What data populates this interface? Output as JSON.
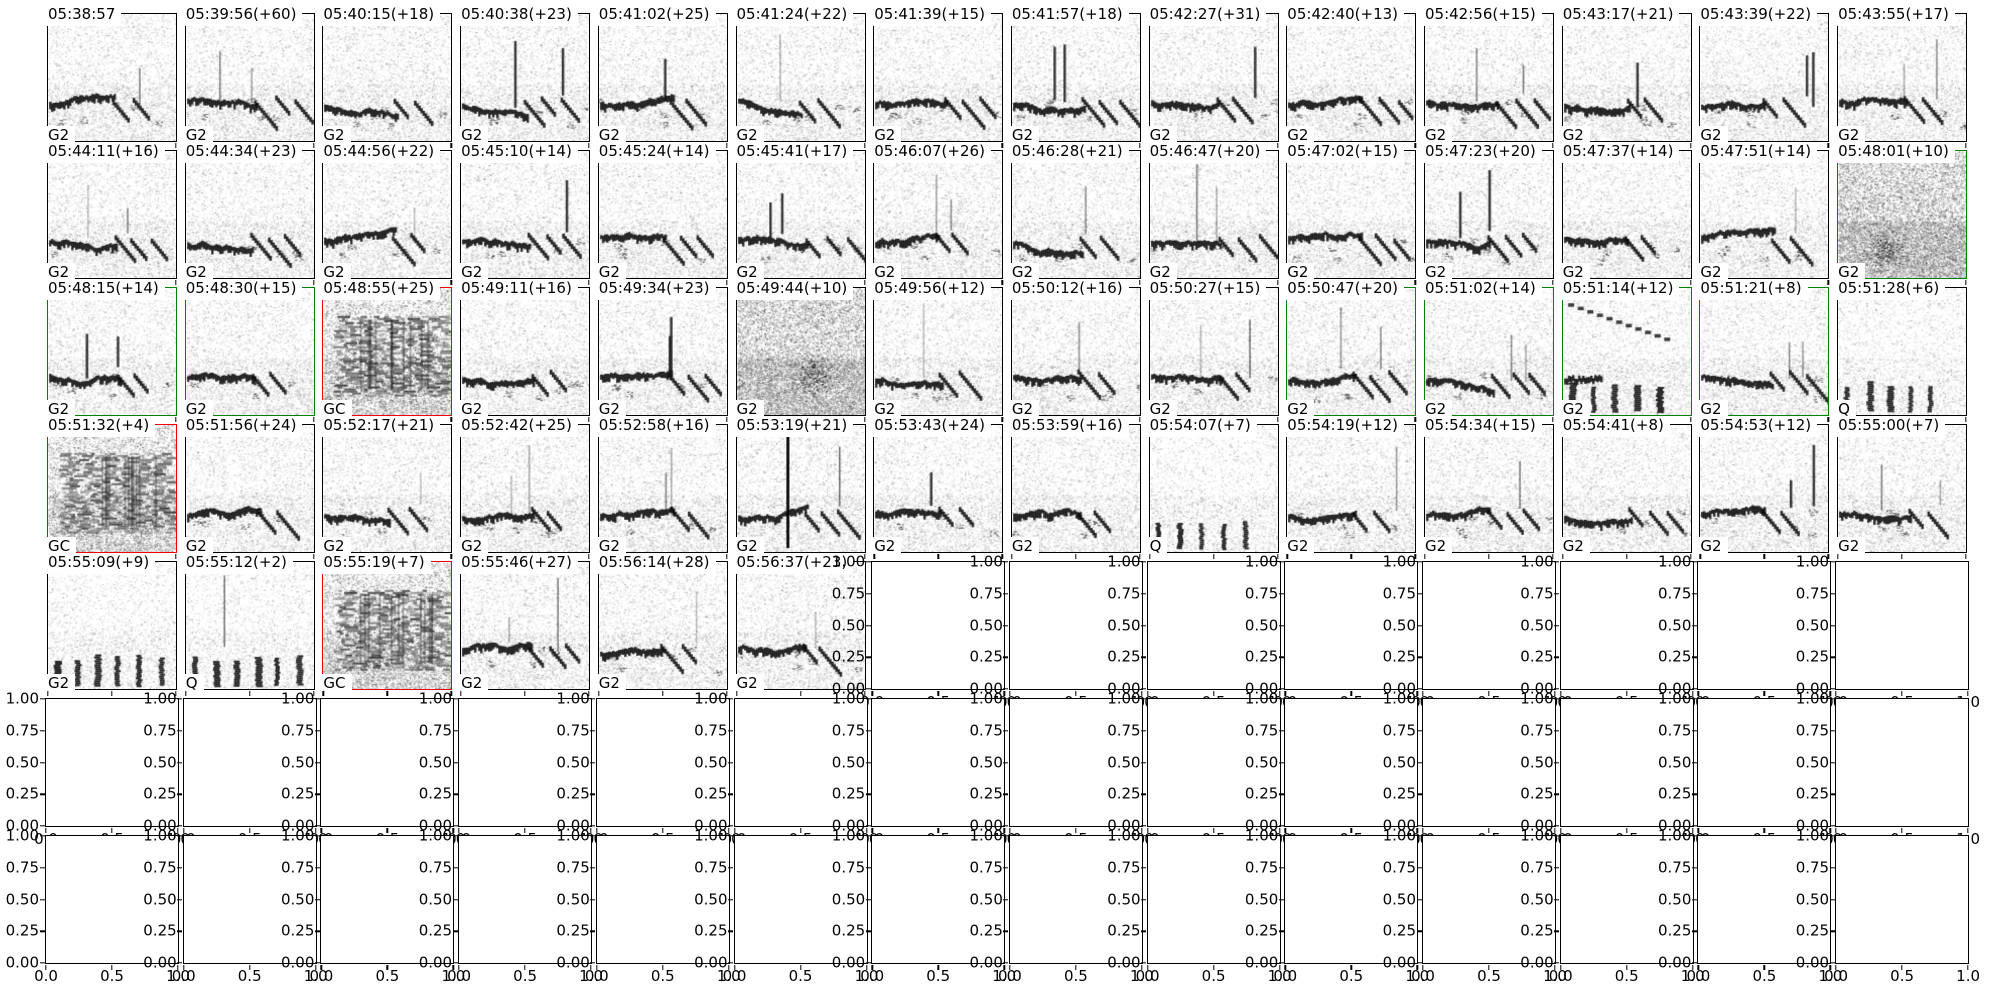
{
  "figure": {
    "rows": 7,
    "cols": 14,
    "background": "#ffffff",
    "border_colors": {
      "black": "#000000",
      "green": "#008000",
      "red": "#ee0000"
    },
    "y_tick_labels": [
      "1.00",
      "0.75",
      "0.50",
      "0.25",
      "0.00"
    ],
    "x_tick_labels": [
      "0.0",
      "0.5",
      "1.0"
    ]
  },
  "chart_data": {
    "type": "heatmap",
    "subtype": "spectrogram-thumbnail-grid",
    "rows": 7,
    "cols": 14,
    "spectrogram_count": 62,
    "empty_axes_count": 36,
    "empty_axes": {
      "x_range": [
        0,
        1
      ],
      "y_range": [
        0,
        1
      ],
      "y_ticks": [
        "1.00",
        "0.75",
        "0.50",
        "0.25",
        "0.00"
      ],
      "x_ticks": [
        "0.0",
        "0.5",
        "1.0"
      ]
    },
    "note": "Each spectrogram panel metadata (timestamp title, class label, border color) is listed in cells[]"
  },
  "cells": [
    {
      "type": "spec",
      "title": "05:38:57",
      "label": "G2",
      "border": "black",
      "texture": "normal"
    },
    {
      "type": "spec",
      "title": "05:39:56(+60)",
      "label": "G2",
      "border": "black",
      "texture": "normal"
    },
    {
      "type": "spec",
      "title": "05:40:15(+18)",
      "label": "G2",
      "border": "black",
      "texture": "normal"
    },
    {
      "type": "spec",
      "title": "05:40:38(+23)",
      "label": "G2",
      "border": "black",
      "texture": "normal"
    },
    {
      "type": "spec",
      "title": "05:41:02(+25)",
      "label": "G2",
      "border": "black",
      "texture": "normal"
    },
    {
      "type": "spec",
      "title": "05:41:24(+22)",
      "label": "G2",
      "border": "black",
      "texture": "normal"
    },
    {
      "type": "spec",
      "title": "05:41:39(+15)",
      "label": "G2",
      "border": "black",
      "texture": "normal"
    },
    {
      "type": "spec",
      "title": "05:41:57(+18)",
      "label": "G2",
      "border": "black",
      "texture": "normal"
    },
    {
      "type": "spec",
      "title": "05:42:27(+31)",
      "label": "G2",
      "border": "black",
      "texture": "normal"
    },
    {
      "type": "spec",
      "title": "05:42:40(+13)",
      "label": "G2",
      "border": "black",
      "texture": "normal"
    },
    {
      "type": "spec",
      "title": "05:42:56(+15)",
      "label": "G2",
      "border": "black",
      "texture": "normal"
    },
    {
      "type": "spec",
      "title": "05:43:17(+21)",
      "label": "G2",
      "border": "black",
      "texture": "normal"
    },
    {
      "type": "spec",
      "title": "05:43:39(+22)",
      "label": "G2",
      "border": "black",
      "texture": "normal"
    },
    {
      "type": "spec",
      "title": "05:43:55(+17)",
      "label": "G2",
      "border": "black",
      "texture": "normal"
    },
    {
      "type": "spec",
      "title": "05:44:11(+16)",
      "label": "G2",
      "border": "black",
      "texture": "normal"
    },
    {
      "type": "spec",
      "title": "05:44:34(+23)",
      "label": "G2",
      "border": "black",
      "texture": "normal"
    },
    {
      "type": "spec",
      "title": "05:44:56(+22)",
      "label": "G2",
      "border": "black",
      "texture": "normal"
    },
    {
      "type": "spec",
      "title": "05:45:10(+14)",
      "label": "G2",
      "border": "black",
      "texture": "normal"
    },
    {
      "type": "spec",
      "title": "05:45:24(+14)",
      "label": "G2",
      "border": "black",
      "texture": "normal"
    },
    {
      "type": "spec",
      "title": "05:45:41(+17)",
      "label": "G2",
      "border": "black",
      "texture": "normal"
    },
    {
      "type": "spec",
      "title": "05:46:07(+26)",
      "label": "G2",
      "border": "black",
      "texture": "normal"
    },
    {
      "type": "spec",
      "title": "05:46:28(+21)",
      "label": "G2",
      "border": "black",
      "texture": "normal"
    },
    {
      "type": "spec",
      "title": "05:46:47(+20)",
      "label": "G2",
      "border": "black",
      "texture": "normal"
    },
    {
      "type": "spec",
      "title": "05:47:02(+15)",
      "label": "G2",
      "border": "black",
      "texture": "normal"
    },
    {
      "type": "spec",
      "title": "05:47:23(+20)",
      "label": "G2",
      "border": "black",
      "texture": "normal"
    },
    {
      "type": "spec",
      "title": "05:47:37(+14)",
      "label": "G2",
      "border": "black",
      "texture": "normal"
    },
    {
      "type": "spec",
      "title": "05:47:51(+14)",
      "label": "G2",
      "border": "black",
      "texture": "normal"
    },
    {
      "type": "spec",
      "title": "05:48:01(+10)",
      "label": "G2",
      "border": "green",
      "texture": "noisy"
    },
    {
      "type": "spec",
      "title": "05:48:15(+14)",
      "label": "G2",
      "border": "green",
      "texture": "normal"
    },
    {
      "type": "spec",
      "title": "05:48:30(+15)",
      "label": "G2",
      "border": "green",
      "texture": "normal"
    },
    {
      "type": "spec",
      "title": "05:48:55(+25)",
      "label": "GC",
      "border": "red",
      "texture": "dense"
    },
    {
      "type": "spec",
      "title": "05:49:11(+16)",
      "label": "G2",
      "border": "black",
      "texture": "normal"
    },
    {
      "type": "spec",
      "title": "05:49:34(+23)",
      "label": "G2",
      "border": "black",
      "texture": "normal"
    },
    {
      "type": "spec",
      "title": "05:49:44(+10)",
      "label": "G2",
      "border": "black",
      "texture": "noisy"
    },
    {
      "type": "spec",
      "title": "05:49:56(+12)",
      "label": "G2",
      "border": "black",
      "texture": "normal"
    },
    {
      "type": "spec",
      "title": "05:50:12(+16)",
      "label": "G2",
      "border": "black",
      "texture": "normal"
    },
    {
      "type": "spec",
      "title": "05:50:27(+15)",
      "label": "G2",
      "border": "black",
      "texture": "normal"
    },
    {
      "type": "spec",
      "title": "05:50:47(+20)",
      "label": "G2",
      "border": "green",
      "texture": "normal"
    },
    {
      "type": "spec",
      "title": "05:51:02(+14)",
      "label": "G2",
      "border": "green",
      "texture": "normal"
    },
    {
      "type": "spec",
      "title": "05:51:14(+12)",
      "label": "G2",
      "border": "green",
      "texture": "comb"
    },
    {
      "type": "spec",
      "title": "05:51:21(+8)",
      "label": "G2",
      "border": "green",
      "texture": "normal"
    },
    {
      "type": "spec",
      "title": "05:51:28(+6)",
      "label": "Q",
      "border": "black",
      "texture": "clicks"
    },
    {
      "type": "spec",
      "title": "05:51:32(+4)",
      "label": "GC",
      "border": "red",
      "texture": "dense"
    },
    {
      "type": "spec",
      "title": "05:51:56(+24)",
      "label": "G2",
      "border": "black",
      "texture": "normal"
    },
    {
      "type": "spec",
      "title": "05:52:17(+21)",
      "label": "G2",
      "border": "black",
      "texture": "normal"
    },
    {
      "type": "spec",
      "title": "05:52:42(+25)",
      "label": "G2",
      "border": "black",
      "texture": "normal"
    },
    {
      "type": "spec",
      "title": "05:52:58(+16)",
      "label": "G2",
      "border": "black",
      "texture": "normal"
    },
    {
      "type": "spec",
      "title": "05:53:19(+21)",
      "label": "G2",
      "border": "black",
      "texture": "spike"
    },
    {
      "type": "spec",
      "title": "05:53:43(+24)",
      "label": "G2",
      "border": "black",
      "texture": "normal"
    },
    {
      "type": "spec",
      "title": "05:53:59(+16)",
      "label": "G2",
      "border": "black",
      "texture": "normal"
    },
    {
      "type": "spec",
      "title": "05:54:07(+7)",
      "label": "Q",
      "border": "black",
      "texture": "clicks"
    },
    {
      "type": "spec",
      "title": "05:54:19(+12)",
      "label": "G2",
      "border": "black",
      "texture": "normal"
    },
    {
      "type": "spec",
      "title": "05:54:34(+15)",
      "label": "G2",
      "border": "black",
      "texture": "normal"
    },
    {
      "type": "spec",
      "title": "05:54:41(+8)",
      "label": "G2",
      "border": "black",
      "texture": "normal"
    },
    {
      "type": "spec",
      "title": "05:54:53(+12)",
      "label": "G2",
      "border": "black",
      "texture": "normal"
    },
    {
      "type": "spec",
      "title": "05:55:00(+7)",
      "label": "G2",
      "border": "black",
      "texture": "normal"
    },
    {
      "type": "spec",
      "title": "05:55:09(+9)",
      "label": "G2",
      "border": "black",
      "texture": "clicks"
    },
    {
      "type": "spec",
      "title": "05:55:12(+2)",
      "label": "Q",
      "border": "black",
      "texture": "clicks"
    },
    {
      "type": "spec",
      "title": "05:55:19(+7)",
      "label": "GC",
      "border": "red",
      "texture": "dense"
    },
    {
      "type": "spec",
      "title": "05:55:46(+27)",
      "label": "G2",
      "border": "black",
      "texture": "normal"
    },
    {
      "type": "spec",
      "title": "05:56:14(+28)",
      "label": "G2",
      "border": "black",
      "texture": "normal"
    },
    {
      "type": "spec",
      "title": "05:56:37(+23)",
      "label": "G2",
      "border": "black",
      "texture": "normal"
    },
    {
      "type": "empty"
    },
    {
      "type": "empty"
    },
    {
      "type": "empty"
    },
    {
      "type": "empty"
    },
    {
      "type": "empty"
    },
    {
      "type": "empty"
    },
    {
      "type": "empty"
    },
    {
      "type": "empty"
    },
    {
      "type": "empty"
    },
    {
      "type": "empty"
    },
    {
      "type": "empty"
    },
    {
      "type": "empty"
    },
    {
      "type": "empty"
    },
    {
      "type": "empty"
    },
    {
      "type": "empty"
    },
    {
      "type": "empty"
    },
    {
      "type": "empty"
    },
    {
      "type": "empty"
    },
    {
      "type": "empty"
    },
    {
      "type": "empty"
    },
    {
      "type": "empty"
    },
    {
      "type": "empty"
    },
    {
      "type": "empty"
    },
    {
      "type": "empty"
    },
    {
      "type": "empty"
    },
    {
      "type": "empty"
    },
    {
      "type": "empty"
    },
    {
      "type": "empty"
    },
    {
      "type": "empty"
    },
    {
      "type": "empty"
    },
    {
      "type": "empty"
    },
    {
      "type": "empty"
    },
    {
      "type": "empty"
    },
    {
      "type": "empty"
    },
    {
      "type": "empty"
    },
    {
      "type": "empty"
    }
  ]
}
